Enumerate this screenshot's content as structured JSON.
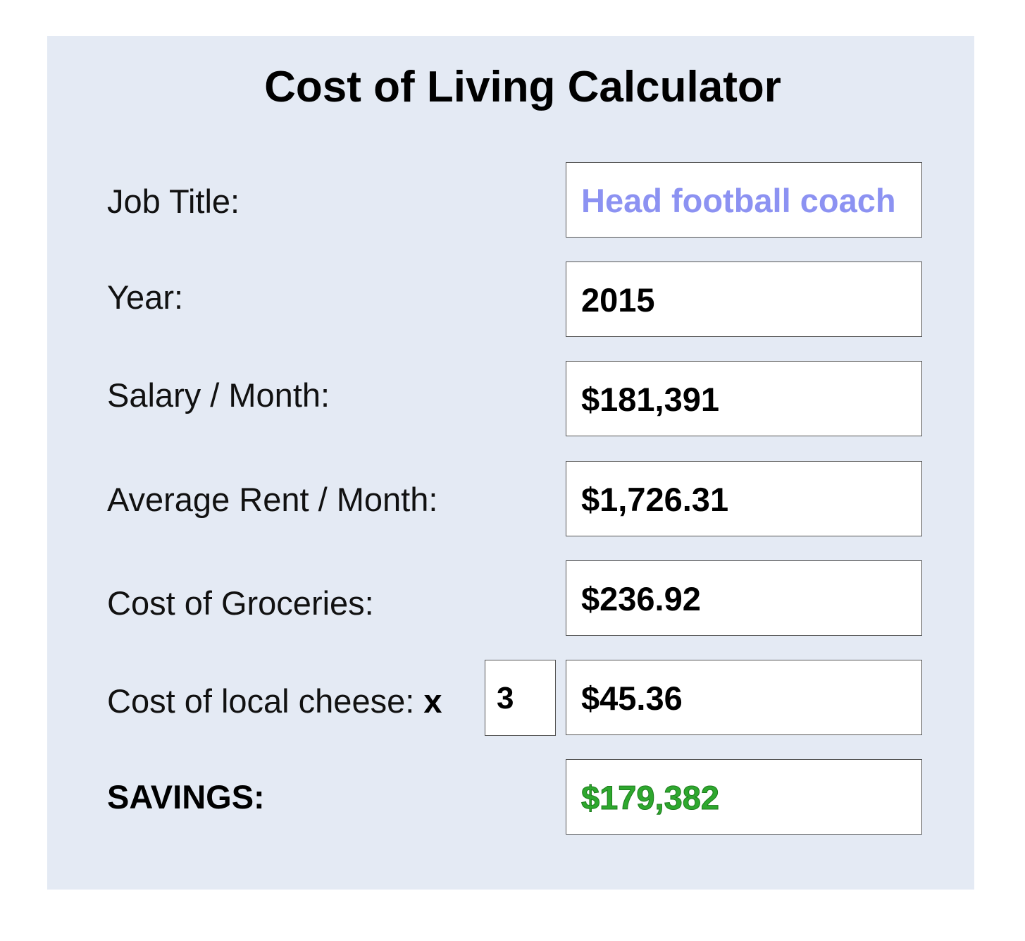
{
  "calculator": {
    "title": "Cost of Living Calculator",
    "job_title": {
      "label": "Job Title:",
      "value": "Head football coach"
    },
    "year": {
      "label": "Year:",
      "value": "2015"
    },
    "salary": {
      "label": "Salary / Month:",
      "value": "$181,391"
    },
    "rent": {
      "label": "Average Rent / Month:",
      "value": "$1,726.31"
    },
    "groceries": {
      "label": "Cost of Groceries:",
      "value": "$236.92"
    },
    "cheese": {
      "label": "Cost of local cheese:",
      "multiplier_symbol": "x",
      "quantity": "3",
      "value": "$45.36"
    },
    "savings": {
      "label": "SAVINGS:",
      "value": "$179,382"
    },
    "colors": {
      "panel_background": "#e4eaf4",
      "job_title_text": "#8c92f2",
      "savings_text": "#2ea82e"
    }
  }
}
